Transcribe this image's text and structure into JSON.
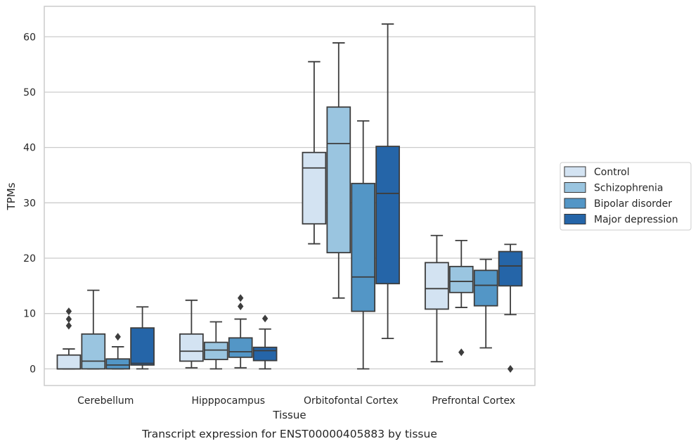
{
  "chart_data": {
    "type": "box",
    "xlabel": "Tissue",
    "ylabel": "TPMs",
    "caption": "Transcript expression for ENST00000405883 by tissue",
    "ylim": [
      -3,
      65.5
    ],
    "yticks": [
      0,
      10,
      20,
      30,
      40,
      50,
      60
    ],
    "grid": "horizontal",
    "legend_position": "right",
    "categories": [
      "Cerebellum",
      "Hipppocampus",
      "Orbitofontal Cortex",
      "Prefrontal Cortex"
    ],
    "series": [
      {
        "name": "Control",
        "color": "#d3e3f2",
        "boxes": [
          {
            "whislo": 0,
            "q1": 0,
            "med": 0,
            "q3": 2.5,
            "whishi": 3.6,
            "fliers": [
              7.8,
              9.0,
              10.4
            ]
          },
          {
            "whislo": 0.2,
            "q1": 1.4,
            "med": 3.2,
            "q3": 6.3,
            "whishi": 12.4,
            "fliers": []
          },
          {
            "whislo": 22.6,
            "q1": 26.2,
            "med": 36.3,
            "q3": 39.1,
            "whishi": 55.5,
            "fliers": []
          },
          {
            "whislo": 1.3,
            "q1": 10.8,
            "med": 14.5,
            "q3": 19.2,
            "whishi": 24.1,
            "fliers": []
          }
        ]
      },
      {
        "name": "Schizophrenia",
        "color": "#9ac5e0",
        "boxes": [
          {
            "whislo": 0,
            "q1": 0,
            "med": 1.4,
            "q3": 6.3,
            "whishi": 14.2,
            "fliers": []
          },
          {
            "whislo": 0,
            "q1": 1.7,
            "med": 3.4,
            "q3": 4.8,
            "whishi": 8.5,
            "fliers": []
          },
          {
            "whislo": 12.8,
            "q1": 21.0,
            "med": 40.7,
            "q3": 47.3,
            "whishi": 58.9,
            "fliers": []
          },
          {
            "whislo": 11.1,
            "q1": 13.8,
            "med": 15.8,
            "q3": 18.5,
            "whishi": 23.2,
            "fliers": [
              3.0
            ]
          }
        ]
      },
      {
        "name": "Bipolar disorder",
        "color": "#5396c6",
        "boxes": [
          {
            "whislo": 0,
            "q1": 0,
            "med": 0.7,
            "q3": 1.8,
            "whishi": 4.0,
            "fliers": [
              5.8
            ]
          },
          {
            "whislo": 0.2,
            "q1": 2.1,
            "med": 3.1,
            "q3": 5.6,
            "whishi": 9.0,
            "fliers": [
              11.3,
              12.8
            ]
          },
          {
            "whislo": 0,
            "q1": 10.4,
            "med": 16.6,
            "q3": 33.5,
            "whishi": 44.8,
            "fliers": []
          },
          {
            "whislo": 3.8,
            "q1": 11.4,
            "med": 15.1,
            "q3": 17.8,
            "whishi": 19.8,
            "fliers": []
          }
        ]
      },
      {
        "name": "Major depression",
        "color": "#2565a8",
        "boxes": [
          {
            "whislo": 0,
            "q1": 0.7,
            "med": 1.0,
            "q3": 7.4,
            "whishi": 11.2,
            "fliers": []
          },
          {
            "whislo": 0,
            "q1": 1.5,
            "med": 3.3,
            "q3": 3.9,
            "whishi": 7.2,
            "fliers": [
              9.1
            ]
          },
          {
            "whislo": 5.5,
            "q1": 15.4,
            "med": 31.7,
            "q3": 40.2,
            "whishi": 62.3,
            "fliers": []
          },
          {
            "whislo": 9.8,
            "q1": 15.0,
            "med": 18.6,
            "q3": 21.2,
            "whishi": 22.5,
            "fliers": [
              0
            ]
          }
        ]
      }
    ]
  }
}
